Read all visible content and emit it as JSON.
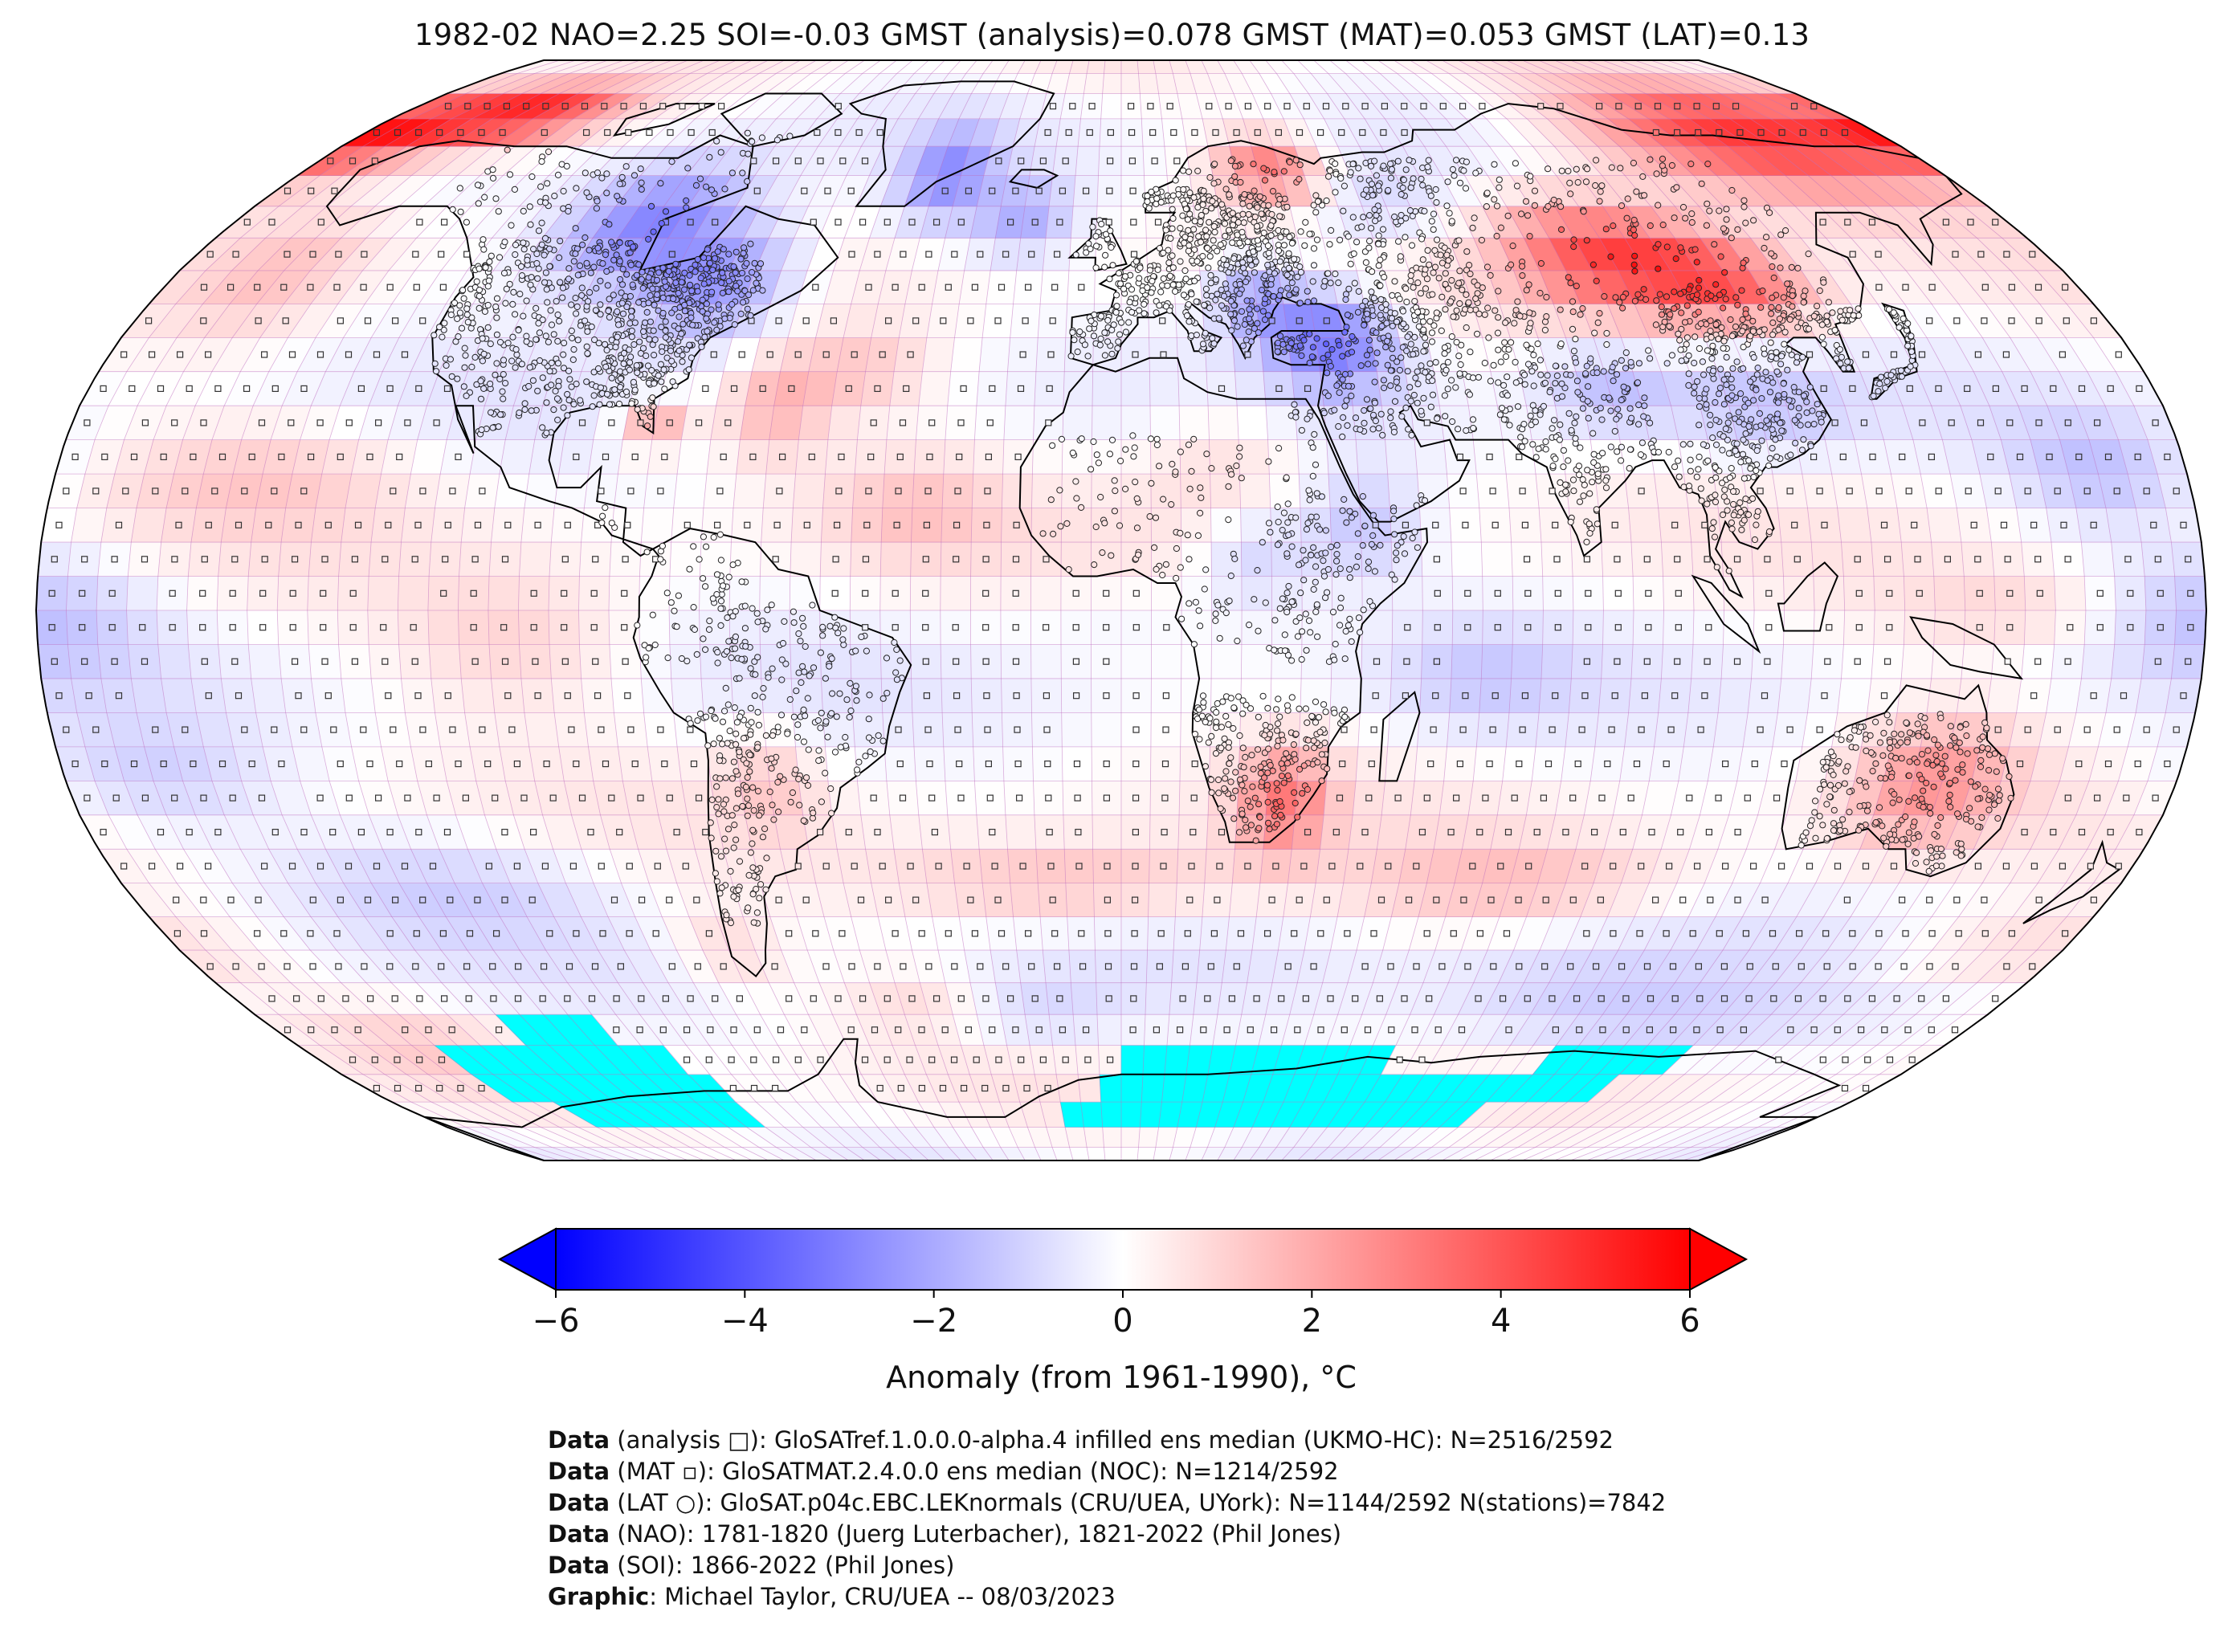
{
  "title": "1982-02 NAO=2.25 SOI=-0.03 GMST (analysis)=0.078 GMST (MAT)=0.053 GMST (LAT)=0.13",
  "colorbar": {
    "label": "Anomaly (from 1961-1990), °C",
    "ticks": [
      "−6",
      "−4",
      "−2",
      "0",
      "2",
      "4",
      "6"
    ],
    "range": [
      -6,
      6
    ],
    "colors": {
      "low": "#0000ff",
      "mid": "#ffffff",
      "high": "#ff0000"
    }
  },
  "map": {
    "projection": "Robinson",
    "sea_ice_color": "#00ffff",
    "grid_line_color": "#c070c0",
    "coastline_color": "#000000"
  },
  "credits": [
    {
      "kw": "Data",
      "text": " (analysis □): GloSATref.1.0.0.0-alpha.4 infilled ens median (UKMO-HC): N=2516/2592"
    },
    {
      "kw": "Data",
      "text": " (MAT ▫): GloSATMAT.2.4.0.0 ens median (NOC): N=1214/2592"
    },
    {
      "kw": "Data",
      "text": " (LAT ○): GloSAT.p04c.EBC.LEKnormals (CRU/UEA, UYork): N=1144/2592 N(stations)=7842"
    },
    {
      "kw": "Data",
      "text": " (NAO): 1781-1820 (Juerg Luterbacher), 1821-2022 (Phil Jones)"
    },
    {
      "kw": "Data",
      "text": " (SOI): 1866-2022 (Phil Jones)"
    },
    {
      "kw": "Graphic",
      "text": ": Michael Taylor, CRU/UEA -- 08/03/2023"
    }
  ]
}
